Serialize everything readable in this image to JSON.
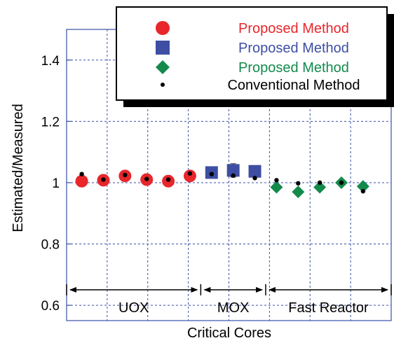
{
  "chart_data": {
    "type": "scatter",
    "xlabel": "Critical Cores",
    "ylabel": "Estimated/Measured",
    "ylim": [
      0.55,
      1.5
    ],
    "yticks": [
      0.6,
      0.8,
      1.0,
      1.2,
      1.4
    ],
    "ytick_labels": [
      "0.6",
      "0.8",
      "1",
      "1.2",
      "1.4"
    ],
    "grid": true,
    "legend_position": "top-right",
    "regions": [
      {
        "label": "UOX",
        "from": 0.3,
        "to": 6.5
      },
      {
        "label": "MOX",
        "from": 6.5,
        "to": 9.5
      },
      {
        "label": "Fast Reactor",
        "from": 9.5,
        "to": 15.3
      }
    ],
    "series": [
      {
        "name": "Proposed Method",
        "marker": "circle",
        "color": "#e8262b",
        "x": [
          1,
          2,
          3,
          4,
          5,
          6
        ],
        "y": [
          1.005,
          1.008,
          1.022,
          1.01,
          1.005,
          1.022
        ],
        "err": [
          0.018,
          0.015,
          0.015,
          0.018,
          0.018,
          0.015
        ]
      },
      {
        "name": "Proposed Method",
        "marker": "square",
        "color": "#3d4ea3",
        "x": [
          7,
          8,
          9
        ],
        "y": [
          1.033,
          1.04,
          1.037
        ],
        "err": [
          0.015,
          0.022,
          0.015
        ]
      },
      {
        "name": "Proposed Method",
        "marker": "diamond",
        "color": "#138a4c",
        "x": [
          10,
          11,
          12,
          13,
          14
        ],
        "y": [
          0.985,
          0.97,
          0.985,
          1.0,
          0.988
        ],
        "err": [
          0,
          0,
          0,
          0,
          0
        ]
      },
      {
        "name": "Conventional Method",
        "marker": "dot",
        "color": "#000000",
        "x": [
          1,
          2,
          3,
          4,
          5,
          6,
          7,
          8,
          9,
          10,
          11,
          12,
          13,
          14
        ],
        "y": [
          1.028,
          1.01,
          1.025,
          1.012,
          1.01,
          1.03,
          1.028,
          1.023,
          1.015,
          1.008,
          0.998,
          1.0,
          1.0,
          0.972
        ],
        "err": []
      }
    ]
  },
  "colors": {
    "frame": "#3a4fa8",
    "grid": "#3a4fa8"
  }
}
